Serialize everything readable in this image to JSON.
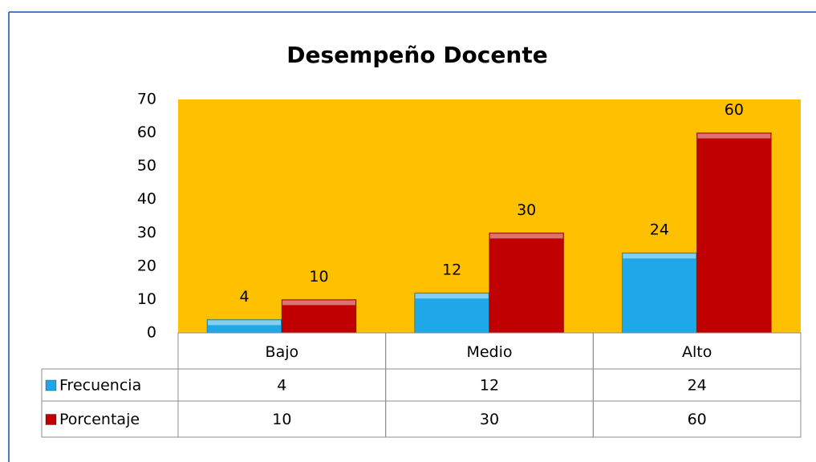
{
  "chart_data": {
    "type": "bar",
    "title": "Desempeño Docente",
    "categories": [
      "Bajo",
      "Medio",
      "Alto"
    ],
    "series": [
      {
        "name": "Frecuencia",
        "color": "#1ea8e8",
        "values": [
          4,
          12,
          24
        ]
      },
      {
        "name": "Porcentaje",
        "color": "#c00000",
        "values": [
          10,
          30,
          60
        ]
      }
    ],
    "ylim": [
      0,
      70
    ],
    "yticks": [
      0,
      10,
      20,
      30,
      40,
      50,
      60,
      70
    ],
    "plot_background": "#ffc000",
    "grid": false
  }
}
